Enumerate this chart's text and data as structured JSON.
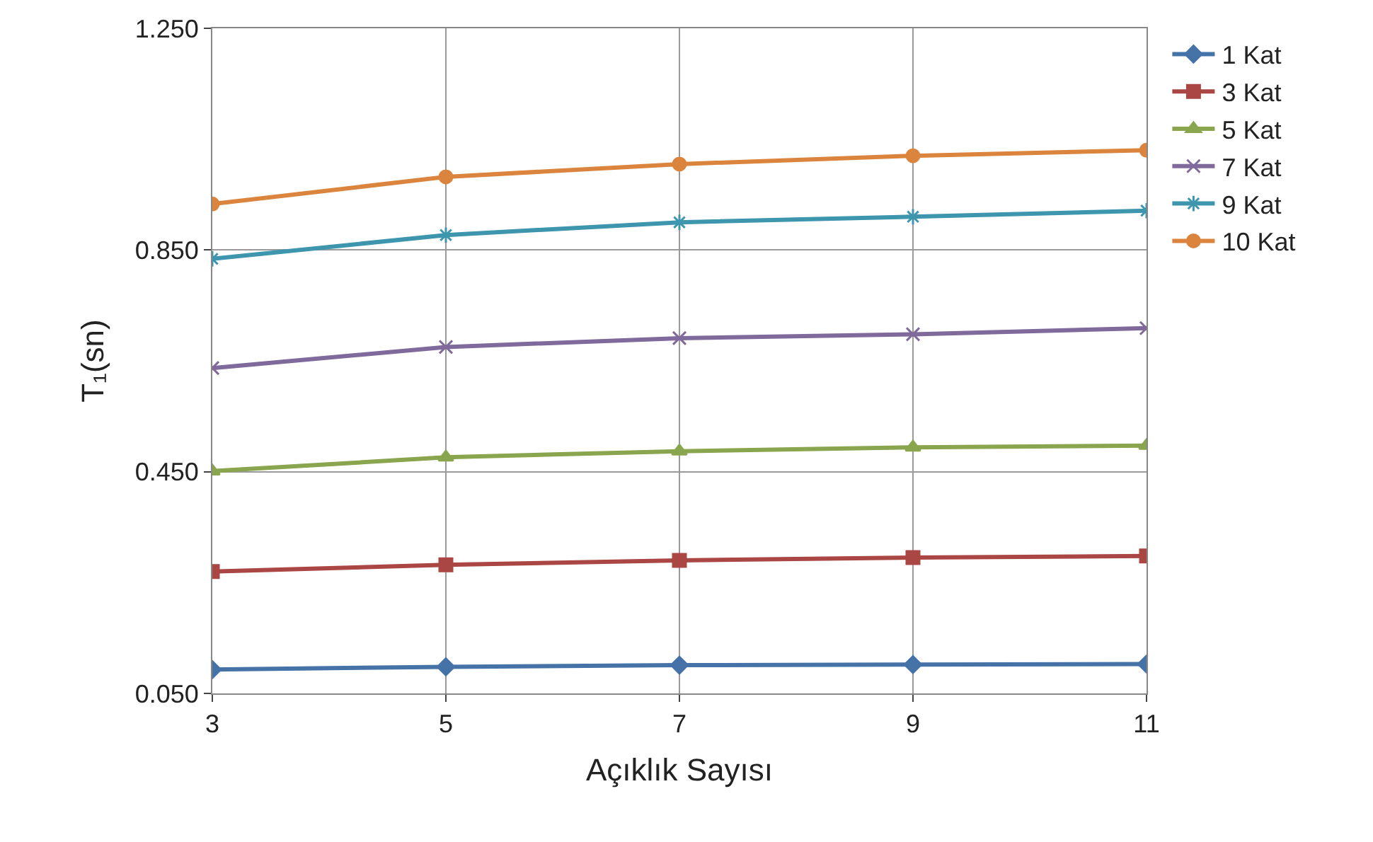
{
  "chart_data": {
    "type": "line",
    "xlabel": "Açıklık Sayısı",
    "ylabel": "T₁(sn)",
    "x": [
      3,
      5,
      7,
      9,
      11
    ],
    "xlim": [
      3,
      11
    ],
    "xticks": [
      3,
      5,
      7,
      9,
      11
    ],
    "ylim": [
      0.05,
      1.25
    ],
    "yticks": [
      {
        "value": 0.05,
        "label": "0.050"
      },
      {
        "value": 0.45,
        "label": "0.450"
      },
      {
        "value": 0.85,
        "label": "0.850"
      },
      {
        "value": 1.25,
        "label": "1.250"
      }
    ],
    "grid": true,
    "legend": "right",
    "line_style": "solid",
    "series": [
      {
        "name": "1 Kat",
        "color": "#4572a7",
        "marker": "diamond",
        "values": [
          0.093,
          0.098,
          0.101,
          0.102,
          0.103
        ]
      },
      {
        "name": "3 Kat",
        "color": "#aa4643",
        "marker": "square",
        "values": [
          0.27,
          0.282,
          0.29,
          0.295,
          0.298
        ]
      },
      {
        "name": "5 Kat",
        "color": "#89a54e",
        "marker": "triangle",
        "values": [
          0.451,
          0.476,
          0.487,
          0.494,
          0.497
        ]
      },
      {
        "name": "7 Kat",
        "color": "#80699b",
        "marker": "cross",
        "values": [
          0.637,
          0.675,
          0.691,
          0.698,
          0.709
        ]
      },
      {
        "name": "9 Kat",
        "color": "#3d96ae",
        "marker": "cross",
        "values": [
          0.834,
          0.877,
          0.9,
          0.91,
          0.921
        ]
      },
      {
        "name": "10 Kat",
        "color": "#db843d",
        "marker": "circle",
        "values": [
          0.933,
          0.982,
          1.005,
          1.02,
          1.03
        ]
      }
    ]
  }
}
